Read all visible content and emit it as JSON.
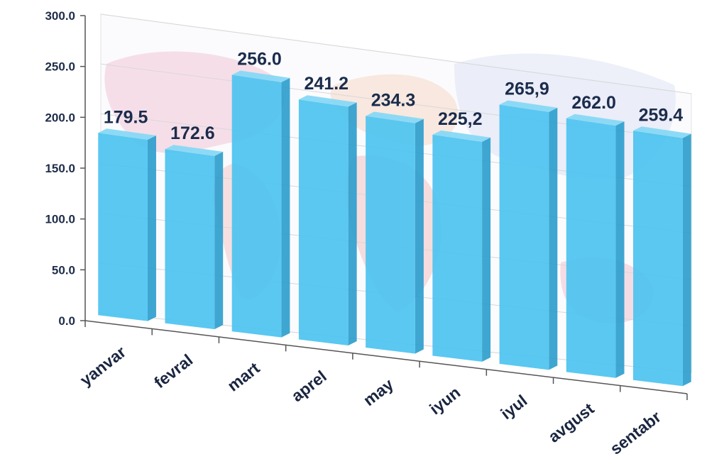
{
  "chart_data": {
    "type": "bar",
    "style": "3d-column",
    "categories": [
      "yanvar",
      "fevral",
      "mart",
      "aprel",
      "may",
      "iyun",
      "iyul",
      "avgust",
      "sentabr"
    ],
    "values": [
      179.5,
      172.6,
      256.0,
      241.2,
      234.3,
      225.2,
      265.9,
      262.0,
      259.4
    ],
    "data_labels": [
      "179.5",
      "172.6",
      "256.0",
      "241.2",
      "234.3",
      "225,2",
      "265,9",
      "262.0",
      "259.4"
    ],
    "y_ticks": [
      "0.0",
      "50.0",
      "100.0",
      "150.0",
      "200.0",
      "250.0",
      "300.0"
    ],
    "ylim": [
      0,
      300
    ],
    "title": "",
    "xlabel": "",
    "ylabel": "",
    "grid": true,
    "legend": "none",
    "background_image": "world-map",
    "colors": {
      "bar_front": "#4cc3f0",
      "bar_side": "#2a9ccc",
      "bar_top": "#87d8f6",
      "label_text": "#1b2c4c",
      "axis": "#555555",
      "grid": "#d8d8d8"
    }
  }
}
